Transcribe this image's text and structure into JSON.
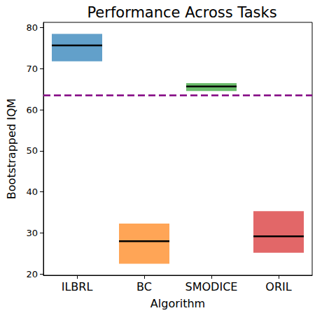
{
  "chart_data": {
    "type": "box",
    "title": "Performance Across Tasks",
    "x_label": "Algorithm",
    "y_label": "Bootstrapped IQM",
    "categories": [
      "ILBRL",
      "BC",
      "SMODICE",
      "ORIL"
    ],
    "low": [
      71.8,
      22.5,
      64.6,
      25.2
    ],
    "high": [
      78.5,
      32.3,
      66.5,
      35.3
    ],
    "median": [
      75.7,
      28.0,
      65.7,
      29.2
    ],
    "colors": [
      "#1f77b4",
      "#ff7f0e",
      "#2ca02c",
      "#d62728"
    ],
    "hlines": [
      {
        "value": 63.5,
        "color": "#800080",
        "line_style": "dashed"
      }
    ],
    "ylim": [
      19.7,
      81.3
    ],
    "yticks": [
      20,
      30,
      40,
      50,
      60,
      70,
      80
    ],
    "grid": false
  }
}
